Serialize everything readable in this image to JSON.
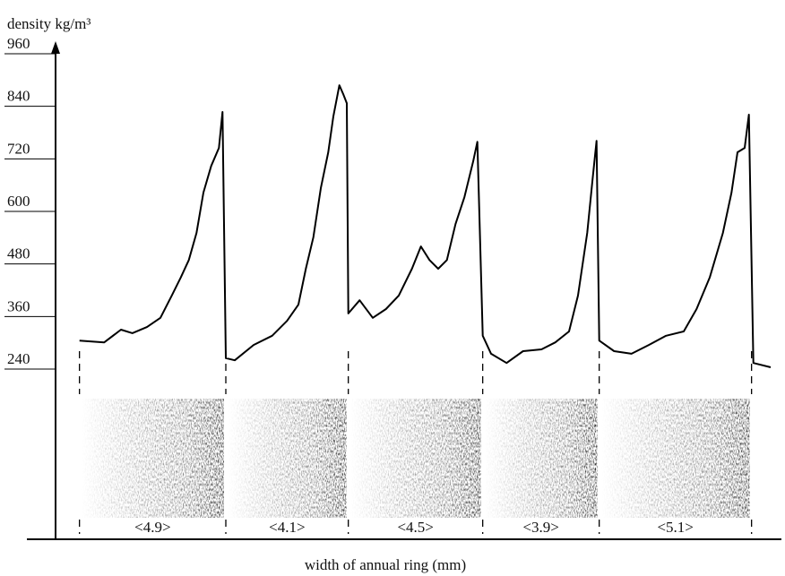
{
  "chart_data": {
    "type": "line",
    "y_label": "density kg/m³",
    "x_label": "width of annual ring (mm)",
    "x": [
      0,
      0.83,
      1.39,
      1.77,
      2.26,
      2.71,
      3.09,
      3.39,
      3.66,
      3.92,
      4.15,
      4.41,
      4.67,
      4.79,
      4.9,
      5.2,
      5.83,
      6.45,
      6.95,
      7.33,
      7.58,
      7.83,
      8.08,
      8.33,
      8.5,
      8.7,
      8.83,
      8.95,
      9.0,
      9.38,
      9.82,
      10.26,
      10.69,
      11.13,
      11.43,
      11.72,
      12.01,
      12.3,
      12.59,
      12.89,
      13.18,
      13.32,
      13.5,
      13.78,
      14.3,
      14.85,
      15.47,
      15.93,
      16.39,
      16.69,
      17.0,
      17.18,
      17.31,
      17.4,
      17.9,
      18.48,
      19.06,
      19.64,
      20.23,
      20.66,
      21.1,
      21.54,
      21.83,
      22.03,
      22.27,
      22.41,
      22.56,
      23.14
    ],
    "values": [
      305,
      301,
      330,
      322,
      336,
      357,
      408,
      449,
      489,
      551,
      643,
      704,
      745,
      827,
      265,
      260,
      295,
      316,
      350,
      387,
      469,
      541,
      653,
      735,
      817,
      888,
      868,
      847,
      367,
      397,
      357,
      377,
      408,
      469,
      520,
      489,
      469,
      489,
      571,
      633,
      714,
      759,
      316,
      275,
      254,
      281,
      285,
      301,
      326,
      408,
      551,
      674,
      761,
      305,
      281,
      275,
      295,
      316,
      326,
      377,
      449,
      551,
      643,
      735,
      745,
      821,
      254,
      244
    ],
    "color": "#000000",
    "xlim": [
      -0.8,
      23.2
    ],
    "ylim": [
      240,
      960
    ],
    "yticks": [
      240,
      360,
      480,
      600,
      720,
      840,
      960
    ],
    "rings": {
      "values": [
        4.9,
        4.1,
        4.5,
        3.9,
        5.1
      ],
      "value_labels": [
        "<4.9>",
        "<4.1>",
        "<4.5>",
        "<3.9>",
        "<5.1>"
      ]
    }
  }
}
